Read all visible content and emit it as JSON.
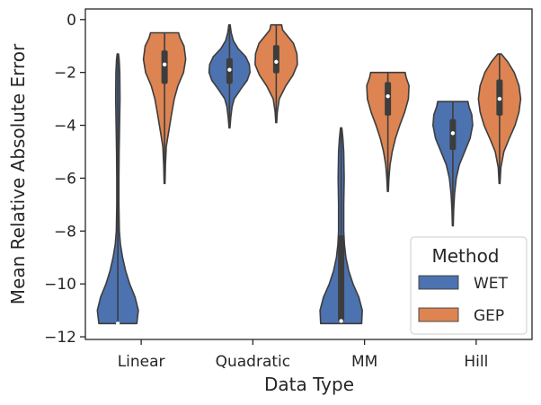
{
  "chart_data": {
    "type": "violin",
    "xlabel": "Data Type",
    "ylabel": "Mean Relative Absolute Error",
    "ylim": [
      -12.1,
      0.4
    ],
    "yticks": [
      0,
      -2,
      -4,
      -6,
      -8,
      -10,
      -12
    ],
    "ytick_labels": [
      "0",
      "−2",
      "−4",
      "−6",
      "−8",
      "−10",
      "−12"
    ],
    "categories": [
      "Linear",
      "Quadratic",
      "MM",
      "Hill"
    ],
    "legend": {
      "title": "Method",
      "position": "lower-right"
    },
    "grid": false,
    "series": [
      {
        "name": "WET",
        "color": "#4c72b0",
        "groups": [
          {
            "category": "Linear",
            "min": -11.5,
            "max": -1.3,
            "q1": -11.5,
            "median": -11.5,
            "q3": -11.5,
            "profile": [
              [
                -11.5,
                0.88
              ],
              [
                -11.0,
                0.95
              ],
              [
                -10.5,
                0.8
              ],
              [
                -10.0,
                0.55
              ],
              [
                -9.5,
                0.36
              ],
              [
                -9.0,
                0.22
              ],
              [
                -8.5,
                0.12
              ],
              [
                -8.0,
                0.07
              ],
              [
                -7.0,
                0.05
              ],
              [
                -6.0,
                0.05
              ],
              [
                -5.0,
                0.06
              ],
              [
                -4.0,
                0.08
              ],
              [
                -3.0,
                0.1
              ],
              [
                -2.0,
                0.09
              ],
              [
                -1.5,
                0.06
              ],
              [
                -1.3,
                0.03
              ]
            ]
          },
          {
            "category": "Quadratic",
            "min": -4.1,
            "max": -0.2,
            "q1": -2.4,
            "median": -1.9,
            "q3": -1.5,
            "profile": [
              [
                -4.1,
                0.02
              ],
              [
                -3.7,
                0.06
              ],
              [
                -3.3,
                0.12
              ],
              [
                -3.0,
                0.22
              ],
              [
                -2.6,
                0.55
              ],
              [
                -2.3,
                0.82
              ],
              [
                -2.0,
                0.95
              ],
              [
                -1.7,
                0.92
              ],
              [
                -1.4,
                0.75
              ],
              [
                -1.1,
                0.4
              ],
              [
                -0.8,
                0.18
              ],
              [
                -0.5,
                0.08
              ],
              [
                -0.2,
                0.03
              ]
            ]
          },
          {
            "category": "MM",
            "min": -11.5,
            "max": -4.1,
            "q1": -11.4,
            "median": -11.4,
            "q3": -8.2,
            "profile": [
              [
                -11.5,
                0.95
              ],
              [
                -11.0,
                0.98
              ],
              [
                -10.5,
                0.82
              ],
              [
                -10.0,
                0.55
              ],
              [
                -9.5,
                0.35
              ],
              [
                -9.0,
                0.22
              ],
              [
                -8.5,
                0.15
              ],
              [
                -8.0,
                0.12
              ],
              [
                -7.0,
                0.12
              ],
              [
                -6.0,
                0.14
              ],
              [
                -5.0,
                0.12
              ],
              [
                -4.5,
                0.08
              ],
              [
                -4.1,
                0.03
              ]
            ]
          },
          {
            "category": "Hill",
            "min": -7.8,
            "max": -3.1,
            "q1": -4.9,
            "median": -4.3,
            "q3": -3.8,
            "profile": [
              [
                -7.8,
                0.02
              ],
              [
                -7.2,
                0.04
              ],
              [
                -6.6,
                0.08
              ],
              [
                -6.0,
                0.16
              ],
              [
                -5.5,
                0.3
              ],
              [
                -5.0,
                0.55
              ],
              [
                -4.5,
                0.8
              ],
              [
                -4.0,
                0.92
              ],
              [
                -3.6,
                0.88
              ],
              [
                -3.3,
                0.75
              ],
              [
                -3.1,
                0.7
              ]
            ]
          }
        ]
      },
      {
        "name": "GEP",
        "color": "#dd8452",
        "groups": [
          {
            "category": "Linear",
            "min": -6.2,
            "max": -0.5,
            "q1": -2.4,
            "median": -1.7,
            "q3": -1.2,
            "profile": [
              [
                -6.2,
                0.02
              ],
              [
                -5.5,
                0.04
              ],
              [
                -4.8,
                0.08
              ],
              [
                -4.2,
                0.2
              ],
              [
                -3.6,
                0.32
              ],
              [
                -3.0,
                0.45
              ],
              [
                -2.5,
                0.62
              ],
              [
                -2.0,
                0.88
              ],
              [
                -1.5,
                0.98
              ],
              [
                -1.0,
                0.9
              ],
              [
                -0.7,
                0.72
              ],
              [
                -0.5,
                0.65
              ]
            ]
          },
          {
            "category": "Quadratic",
            "min": -3.9,
            "max": -0.2,
            "q1": -2.0,
            "median": -1.6,
            "q3": -1.0,
            "profile": [
              [
                -3.9,
                0.02
              ],
              [
                -3.5,
                0.05
              ],
              [
                -3.0,
                0.14
              ],
              [
                -2.5,
                0.45
              ],
              [
                -2.1,
                0.78
              ],
              [
                -1.7,
                0.98
              ],
              [
                -1.3,
                0.96
              ],
              [
                -0.9,
                0.8
              ],
              [
                -0.6,
                0.5
              ],
              [
                -0.4,
                0.3
              ],
              [
                -0.2,
                0.25
              ]
            ]
          },
          {
            "category": "MM",
            "min": -6.5,
            "max": -2.0,
            "q1": -3.6,
            "median": -2.9,
            "q3": -2.4,
            "profile": [
              [
                -6.5,
                0.02
              ],
              [
                -6.0,
                0.05
              ],
              [
                -5.5,
                0.1
              ],
              [
                -5.0,
                0.2
              ],
              [
                -4.5,
                0.35
              ],
              [
                -4.0,
                0.55
              ],
              [
                -3.5,
                0.78
              ],
              [
                -3.0,
                0.95
              ],
              [
                -2.5,
                0.98
              ],
              [
                -2.2,
                0.85
              ],
              [
                -2.0,
                0.8
              ]
            ]
          },
          {
            "category": "Hill",
            "min": -6.2,
            "max": -1.3,
            "q1": -3.6,
            "median": -3.0,
            "q3": -2.3,
            "profile": [
              [
                -6.2,
                0.02
              ],
              [
                -5.6,
                0.06
              ],
              [
                -5.0,
                0.2
              ],
              [
                -4.5,
                0.45
              ],
              [
                -4.0,
                0.72
              ],
              [
                -3.5,
                0.9
              ],
              [
                -3.0,
                0.98
              ],
              [
                -2.5,
                0.9
              ],
              [
                -2.0,
                0.68
              ],
              [
                -1.6,
                0.38
              ],
              [
                -1.3,
                0.08
              ]
            ]
          }
        ]
      }
    ]
  }
}
